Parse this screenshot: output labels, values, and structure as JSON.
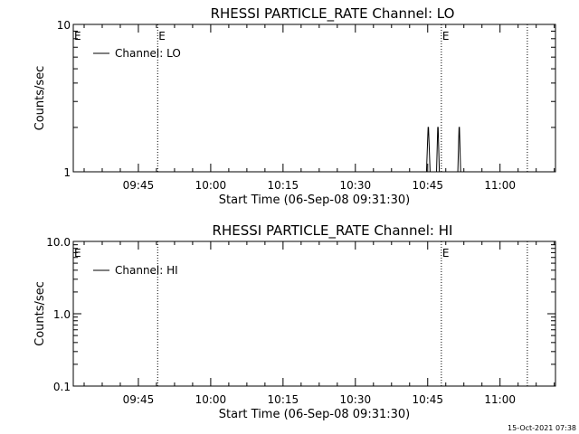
{
  "footer": {
    "timestamp": "15-Oct-2021 07:38"
  },
  "chart_data": [
    {
      "type": "line",
      "title": "RHESSI PARTICLE_RATE Channel: LO",
      "xlabel": "Start Time (06-Sep-08 09:31:30)",
      "ylabel": "Counts/sec",
      "yscale": "log",
      "ylim": [
        1,
        10
      ],
      "ytick_values": [
        1,
        10
      ],
      "ytick_labels": [
        "1",
        "10"
      ],
      "xlim_seconds_from_start": [
        0,
        6000
      ],
      "xtick_labels": [
        "09:45",
        "10:00",
        "10:15",
        "10:30",
        "10:45",
        "11:00"
      ],
      "xtick_values_seconds_from_start": [
        810,
        1710,
        2610,
        3510,
        4410,
        5310
      ],
      "minor_ticks_per_major": 3,
      "legend": {
        "label": "Channel: LO",
        "placement": "top-left"
      },
      "event_lines": [
        {
          "x_seconds_from_start": 1050,
          "label": "E"
        },
        {
          "x_seconds_from_start": 4580,
          "label": "E"
        },
        {
          "x_seconds_from_start": 5650,
          "label": ""
        }
      ],
      "left_marker": "E",
      "series": [
        {
          "name": "Channel: LO",
          "x_seconds_from_start": [
            4395,
            4415,
            4420,
            4440,
            4520,
            4535,
            4540,
            4555,
            4785,
            4800,
            4805,
            4820
          ],
          "values": [
            1,
            2,
            2,
            1,
            1,
            2,
            2,
            1,
            1,
            2,
            2,
            1
          ]
        }
      ]
    },
    {
      "type": "line",
      "title": "RHESSI PARTICLE_RATE Channel: HI",
      "xlabel": "Start Time (06-Sep-08 09:31:30)",
      "ylabel": "Counts/sec",
      "yscale": "log",
      "ylim": [
        0.1,
        10
      ],
      "ytick_values": [
        0.1,
        1,
        10
      ],
      "ytick_labels": [
        "0.1",
        "1.0",
        "10.0"
      ],
      "xlim_seconds_from_start": [
        0,
        6000
      ],
      "xtick_labels": [
        "09:45",
        "10:00",
        "10:15",
        "10:30",
        "10:45",
        "11:00"
      ],
      "xtick_values_seconds_from_start": [
        810,
        1710,
        2610,
        3510,
        4410,
        5310
      ],
      "minor_ticks_per_major": 3,
      "legend": {
        "label": "Channel: HI",
        "placement": "top-left"
      },
      "event_lines": [
        {
          "x_seconds_from_start": 1050,
          "label": ""
        },
        {
          "x_seconds_from_start": 4580,
          "label": "E"
        },
        {
          "x_seconds_from_start": 5650,
          "label": ""
        }
      ],
      "left_marker": "E",
      "series": [
        {
          "name": "Channel: HI",
          "x_seconds_from_start": [],
          "values": []
        }
      ]
    }
  ]
}
